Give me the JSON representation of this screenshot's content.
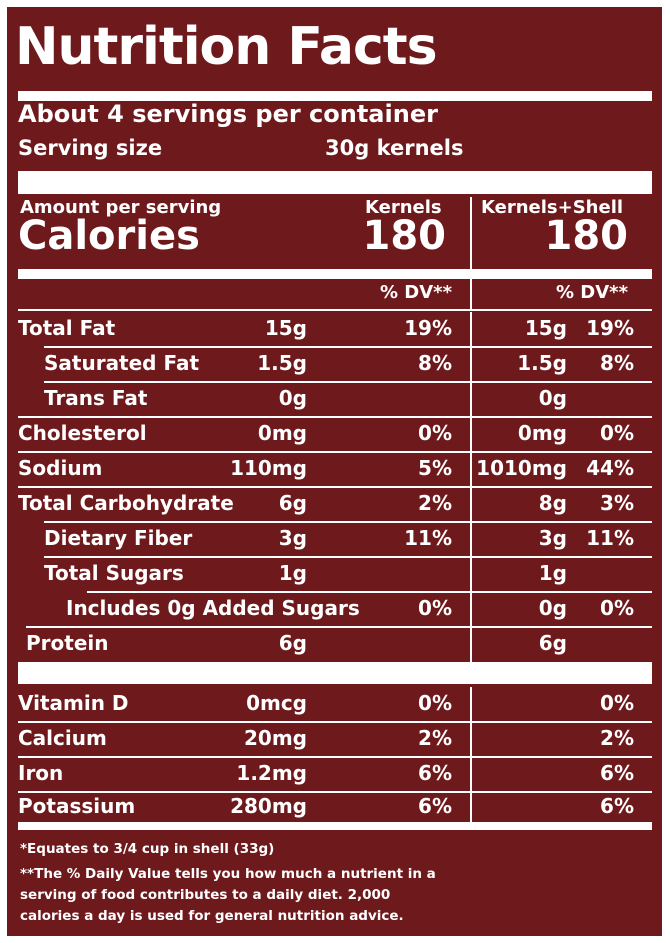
{
  "title": "Nutrition Facts",
  "servings_per_container": "About 4 servings per container",
  "serving_size_label": "Serving size",
  "serving_size_value": "30g kernels",
  "amount_per_serving": "Amount per serving",
  "calories_label": "Calories",
  "columns": {
    "kernels": {
      "header": "Kernels",
      "calories": "180",
      "dv_header": "% DV**"
    },
    "kernels_shell": {
      "header": "Kernels+Shell",
      "calories": "180",
      "dv_header": "% DV**"
    }
  },
  "nutrients": [
    {
      "name": "Total Fat",
      "k_amount": "15g",
      "k_dv": "19%",
      "s_amount": "15g",
      "s_dv": "19%"
    },
    {
      "name": "Saturated Fat",
      "k_amount": "1.5g",
      "k_dv": "8%",
      "s_amount": "1.5g",
      "s_dv": "8%"
    },
    {
      "name": "Trans Fat",
      "k_amount": "0g",
      "k_dv": "",
      "s_amount": "0g",
      "s_dv": ""
    },
    {
      "name": "Cholesterol",
      "k_amount": "0mg",
      "k_dv": "0%",
      "s_amount": "0mg",
      "s_dv": "0%"
    },
    {
      "name": "Sodium",
      "k_amount": "110mg",
      "k_dv": "5%",
      "s_amount": "1010mg",
      "s_dv": "44%"
    },
    {
      "name": "Total Carbohydrate",
      "k_amount": "6g",
      "k_dv": "2%",
      "s_amount": "8g",
      "s_dv": "3%"
    },
    {
      "name": "Dietary Fiber",
      "k_amount": "3g",
      "k_dv": "11%",
      "s_amount": "3g",
      "s_dv": "11%"
    },
    {
      "name": "Total Sugars",
      "k_amount": "1g",
      "k_dv": "",
      "s_amount": "1g",
      "s_dv": ""
    },
    {
      "name": "Includes 0g  Added Sugars",
      "k_amount": "",
      "k_dv": "0%",
      "s_amount": "0g",
      "s_dv": "0%"
    },
    {
      "name": "Protein",
      "k_amount": "6g",
      "k_dv": "",
      "s_amount": "6g",
      "s_dv": ""
    }
  ],
  "vitamins": [
    {
      "name": "Vitamin D",
      "k_amount": "0mcg",
      "k_dv": "0%",
      "s_dv": "0%"
    },
    {
      "name": "Calcium",
      "k_amount": "20mg",
      "k_dv": "2%",
      "s_dv": "2%"
    },
    {
      "name": "Iron",
      "k_amount": "1.2mg",
      "k_dv": "6%",
      "s_dv": "6%"
    },
    {
      "name": "Potassium",
      "k_amount": "280mg",
      "k_dv": "6%",
      "s_dv": "6%"
    }
  ],
  "footnotes": {
    "equates": "*Equates to 3/4 cup in shell (33g)",
    "dv_line1": "**The % Daily Value tells you how much a nutrient in a",
    "dv_line2": "serving of food contributes to a daily diet. 2,000",
    "dv_line3": "calories a day is used for general nutrition advice."
  },
  "colors": {
    "background": "#6e1a1c",
    "text": "#ffffff"
  }
}
